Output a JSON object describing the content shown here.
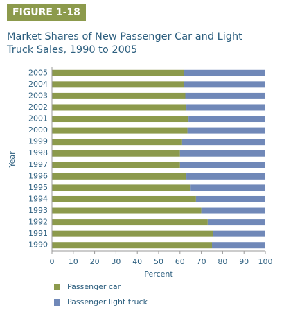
{
  "chart_data": {
    "type": "stacked-barh",
    "figure_label": "FIGURE 1-18",
    "title": "Market Shares of New Passenger Car and Light Truck Sales, 1990 to 2005",
    "ylabel": "Year",
    "xlabel": "Percent",
    "categories": [
      "1990",
      "1991",
      "1992",
      "1993",
      "1994",
      "1995",
      "1996",
      "1997",
      "1998",
      "1999",
      "2000",
      "2001",
      "2002",
      "2003",
      "2004",
      "2005"
    ],
    "series": [
      {
        "name": "Passenger car",
        "color": "#8c9a4c",
        "values": [
          75,
          75.5,
          73,
          70,
          67.5,
          65,
          63,
          60,
          60,
          61,
          63.5,
          64,
          63,
          62.5,
          62,
          62
        ]
      },
      {
        "name": "Passenger light truck",
        "color": "#7088b8",
        "values": [
          25,
          24.5,
          27,
          30,
          32.5,
          35,
          37,
          40,
          40,
          39,
          36.5,
          36,
          37,
          37.5,
          38,
          38
        ]
      }
    ],
    "xlim": [
      0,
      100
    ],
    "xticks": [
      0,
      10,
      20,
      30,
      40,
      50,
      60,
      70,
      80,
      90,
      100
    ]
  }
}
